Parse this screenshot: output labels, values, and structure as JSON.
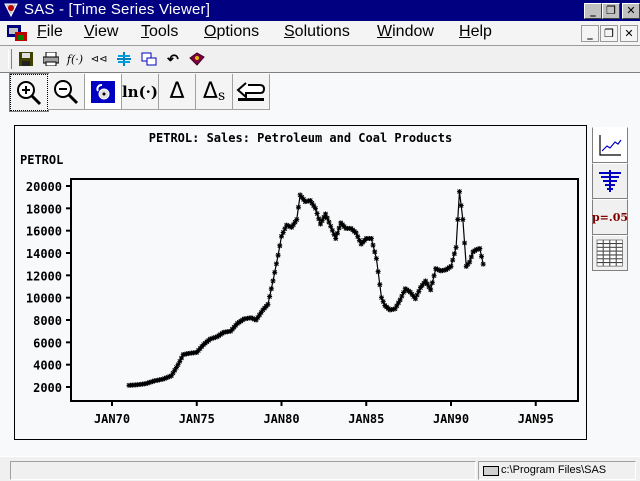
{
  "window": {
    "title": "SAS - [Time Series Viewer]",
    "controls": {
      "minimize": "_",
      "restore": "❐",
      "close": "✕"
    }
  },
  "menubar": {
    "items": [
      {
        "label": "File",
        "accel": "F",
        "rest": "ile"
      },
      {
        "label": "View",
        "accel": "V",
        "rest": "iew"
      },
      {
        "label": "Tools",
        "accel": "T",
        "rest": "ools"
      },
      {
        "label": "Options",
        "accel": "O",
        "rest": "ptions"
      },
      {
        "label": "Solutions",
        "accel": "S",
        "rest": "olutions"
      },
      {
        "label": "Window",
        "accel": "W",
        "rest": "indow"
      },
      {
        "label": "Help",
        "accel": "H",
        "rest": "elp"
      }
    ]
  },
  "toolbar1": {
    "buttons": [
      {
        "icon": "save-icon"
      },
      {
        "icon": "print-icon"
      },
      {
        "icon": "function-icon",
        "text": "f(·)"
      },
      {
        "icon": "rewind-icon",
        "text": "⊲⊲"
      },
      {
        "icon": "split-icon"
      },
      {
        "icon": "windows-icon"
      },
      {
        "icon": "undo-icon",
        "text": "↶"
      },
      {
        "icon": "help-book-icon"
      }
    ]
  },
  "toolbar2": {
    "buttons": [
      {
        "name": "zoom-in",
        "icon": "zoom-in-icon"
      },
      {
        "name": "zoom-out",
        "icon": "zoom-out-icon"
      },
      {
        "name": "link",
        "icon": "lock-icon"
      },
      {
        "name": "log-transform",
        "text": "ln(·)"
      },
      {
        "name": "difference",
        "text": "Δ"
      },
      {
        "name": "seasonal-difference",
        "text": "Δ",
        "sub": "s"
      },
      {
        "name": "undo",
        "icon": "return-arrow-icon"
      }
    ]
  },
  "sidebar": {
    "buttons": [
      {
        "name": "series-plot",
        "icon": "line-chart-icon"
      },
      {
        "name": "autocorrelations",
        "icon": "bar-funnel-icon"
      },
      {
        "name": "white-noise-tests",
        "text": "p=.05"
      },
      {
        "name": "data-table",
        "icon": "table-icon"
      }
    ]
  },
  "chart_data": {
    "type": "line",
    "title": "PETROL: Sales: Petroleum and Coal Products",
    "ylabel": "PETROL",
    "xlabel": "",
    "ylim": [
      2000,
      20000
    ],
    "yticks": [
      2000,
      4000,
      6000,
      8000,
      10000,
      12000,
      14000,
      16000,
      18000,
      20000
    ],
    "ytick_labels": [
      "2000",
      "4000",
      "6000",
      "8000",
      "10000",
      "12000",
      "14000",
      "16000",
      "18000",
      "20000"
    ],
    "xticks": [
      "JAN70",
      "JAN75",
      "JAN80",
      "JAN85",
      "JAN90",
      "JAN95"
    ],
    "xlim": [
      1968.9,
      1998.5
    ],
    "grid": false,
    "marker": "star",
    "series": [
      {
        "name": "PETROL",
        "x": [
          1971.0,
          1971.5,
          1972.0,
          1972.5,
          1973.0,
          1973.5,
          1973.9,
          1974.2,
          1974.5,
          1975.0,
          1975.4,
          1975.8,
          1976.2,
          1976.6,
          1977.0,
          1977.4,
          1977.8,
          1978.2,
          1978.5,
          1978.9,
          1979.2,
          1979.5,
          1979.8,
          1980.0,
          1980.3,
          1980.6,
          1980.9,
          1981.1,
          1981.4,
          1981.7,
          1982.0,
          1982.3,
          1982.6,
          1982.9,
          1983.2,
          1983.5,
          1983.8,
          1984.1,
          1984.4,
          1984.7,
          1985.0,
          1985.3,
          1985.6,
          1985.9,
          1986.1,
          1986.4,
          1986.7,
          1987.0,
          1987.3,
          1987.6,
          1987.9,
          1988.2,
          1988.5,
          1988.8,
          1989.1,
          1989.4,
          1989.7,
          1990.0,
          1990.3,
          1990.5,
          1990.7,
          1990.9,
          1991.1,
          1991.3,
          1991.5,
          1991.7,
          1991.9
        ],
        "values": [
          2150,
          2200,
          2300,
          2550,
          2700,
          3000,
          4000,
          4900,
          5000,
          5100,
          5800,
          6300,
          6500,
          6900,
          7000,
          7700,
          8100,
          8200,
          8000,
          8900,
          9400,
          11500,
          13800,
          15500,
          16500,
          16300,
          17000,
          19200,
          18600,
          18700,
          18000,
          16600,
          17500,
          16400,
          15300,
          16700,
          16200,
          16200,
          15800,
          14800,
          15300,
          15300,
          13500,
          10000,
          9300,
          8900,
          9000,
          9800,
          10800,
          10500,
          9900,
          10900,
          11500,
          10700,
          12600,
          12400,
          12500,
          12800,
          14500,
          19500,
          17000,
          12800,
          13200,
          14100,
          14300,
          14400,
          13000
        ]
      }
    ]
  },
  "statusbar": {
    "message": "",
    "path": "c:\\Program Files\\SAS"
  }
}
